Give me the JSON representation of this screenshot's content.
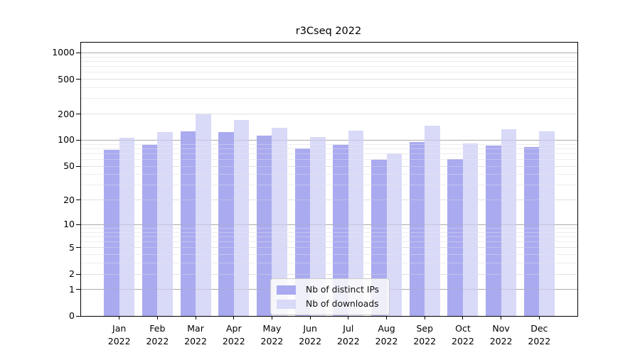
{
  "title": "r3Cseq 2022",
  "legend": {
    "items": [
      {
        "label": "Nb of distinct IPs",
        "color": "#aaaaf0"
      },
      {
        "label": "Nb of downloads",
        "color": "#d9d9f8"
      }
    ]
  },
  "chart_data": {
    "type": "bar",
    "title": "r3Cseq 2022",
    "categories": [
      "Jan 2022",
      "Feb 2022",
      "Mar 2022",
      "Apr 2022",
      "May 2022",
      "Jun 2022",
      "Jul 2022",
      "Aug 2022",
      "Sep 2022",
      "Oct 2022",
      "Nov 2022",
      "Dec 2022"
    ],
    "series": [
      {
        "name": "Nb of distinct IPs",
        "color": "#aaaaf0",
        "values": [
          77,
          88,
          127,
          123,
          114,
          81,
          88,
          59,
          96,
          61,
          87,
          84
        ]
      },
      {
        "name": "Nb of downloads",
        "color": "#d9d9f8",
        "values": [
          107,
          125,
          199,
          171,
          139,
          108,
          130,
          70,
          147,
          91,
          133,
          127
        ]
      }
    ],
    "xlabel": "",
    "ylabel": "",
    "yscale": "log1p",
    "ylim": [
      0,
      1310
    ],
    "y_major_ticks": [
      0,
      1,
      2,
      5,
      10,
      20,
      50,
      100,
      200,
      500,
      1000
    ],
    "y_minor_ticks": [
      3,
      4,
      6,
      7,
      8,
      9,
      30,
      40,
      60,
      70,
      80,
      90,
      300,
      400,
      600,
      700,
      800,
      900
    ],
    "grid": true,
    "legend_position": "lower center",
    "grid_colors": {
      "minor": "#ededed",
      "major": "#e1e1e1",
      "power10": "#ababab"
    }
  }
}
